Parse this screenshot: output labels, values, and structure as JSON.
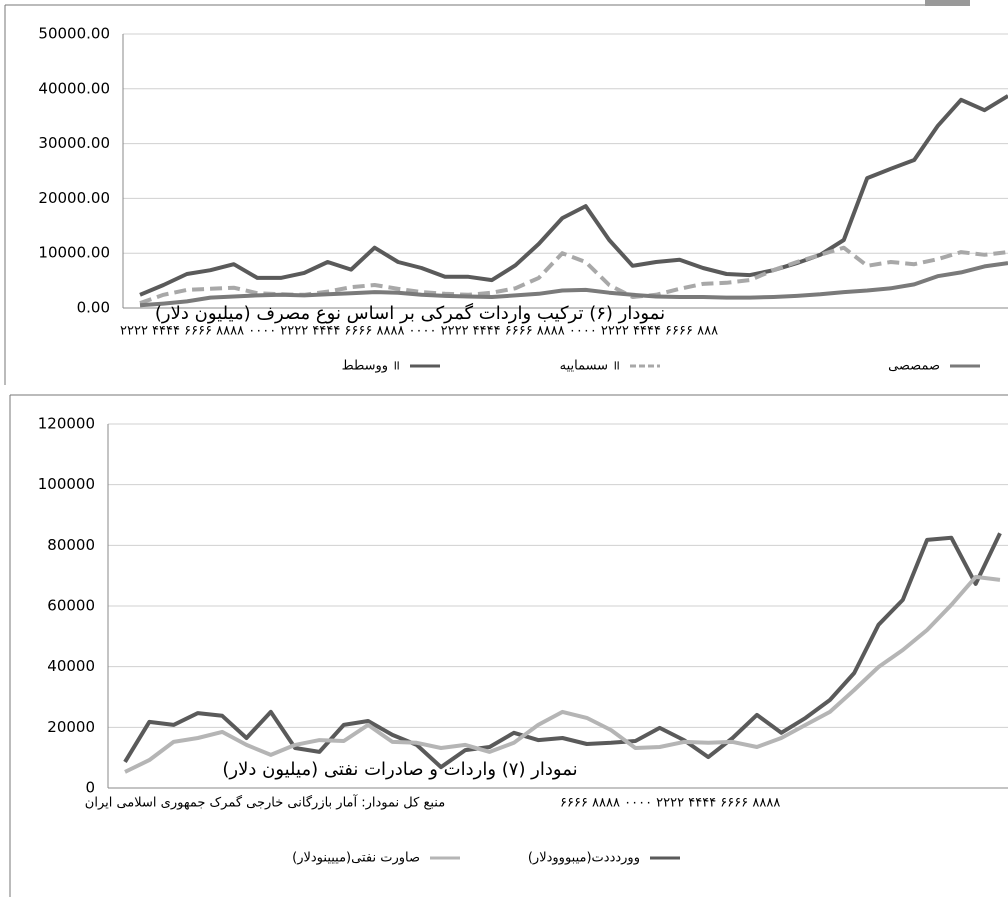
{
  "chart_data": [
    {
      "type": "line",
      "title": "نمودار (۶) ترکیب واردات گمرکی بر اساس نوع مصرف (میلیون دلار)",
      "x_axis_text": "۲۲۲۲ ۴۴۴۴ ۶۶۶۶ ۸۸۸۸ ۰۰۰۰ ۲۲۲۲ ۴۴۴۴ ۶۶۶۶ ۸۸۸۸ ۰۰۰۰ ۲۲۲۲ ۴۴۴۴ ۶۶۶۶ ۸۸۸۸ ۰۰۰۰ ۲۲۲۲ ۴۴۴۴ ۶۶۶۶ ۸۸۸",
      "categories": [
        null,
        null,
        null,
        null,
        null,
        null,
        null,
        null,
        null,
        null,
        null,
        null,
        null,
        null,
        null,
        null,
        null,
        null,
        null,
        null,
        null,
        null,
        null,
        null,
        null,
        null,
        null,
        null,
        null,
        null,
        null,
        null,
        null,
        null,
        null,
        null,
        null,
        null
      ],
      "ylim": [
        0,
        50000
      ],
      "yticks": [
        {
          "value": 0,
          "label": "0.00"
        },
        {
          "value": 10000,
          "label": "10000.00"
        },
        {
          "value": 20000,
          "label": "20000.00"
        },
        {
          "value": 30000,
          "label": "30000.00"
        },
        {
          "value": 40000,
          "label": "40000.00"
        },
        {
          "value": 50000,
          "label": "50000.00"
        }
      ],
      "grid": true,
      "series": [
        {
          "name": "ووسطط ॥",
          "color": "#5a5a5a",
          "style": "solid",
          "values": [
            2400,
            4200,
            6200,
            6900,
            8000,
            5500,
            5500,
            6400,
            8400,
            7000,
            11000,
            8400,
            7300,
            5700,
            5700,
            5100,
            7800,
            11700,
            16400,
            18600,
            12400,
            7700,
            8400,
            8800,
            7300,
            6200,
            6000,
            6900,
            8200,
            9700,
            12400,
            23700,
            25400,
            27000,
            33200,
            38000,
            36100,
            38700
          ]
        },
        {
          "name": "سسماییه ॥",
          "color": "#a8a8a8",
          "style": "dashed",
          "values": [
            900,
            2400,
            3300,
            3500,
            3700,
            2700,
            2500,
            2400,
            3000,
            3800,
            4200,
            3500,
            2900,
            2600,
            2400,
            2800,
            3600,
            5500,
            10000,
            8400,
            4200,
            2000,
            2400,
            3500,
            4400,
            4600,
            5100,
            6900,
            8400,
            9700,
            11000,
            7700,
            8400,
            8000,
            8900,
            10200,
            9700,
            10200
          ]
        },
        {
          "name": "صمصصی",
          "color": "#7a7a7a",
          "style": "solid",
          "values": [
            500,
            800,
            1200,
            1900,
            2100,
            2300,
            2400,
            2300,
            2500,
            2700,
            2900,
            2800,
            2400,
            2200,
            2100,
            2000,
            2300,
            2600,
            3200,
            3300,
            2800,
            2400,
            2100,
            2000,
            2000,
            1900,
            1900,
            2000,
            2200,
            2500,
            2900,
            3200,
            3600,
            4300,
            5800,
            6500,
            7600,
            8200
          ]
        }
      ]
    },
    {
      "type": "line",
      "title": "نمودار (۷) واردات و صادرات نفتی (میلیون دلار)",
      "x_axis_text": "۶۶۶۶ ۸۸۸۸ ۰۰۰۰ ۲۲۲۲ ۴۴۴۴ ۶۶۶۶ ۸۸۸۸",
      "source": "منبع کل نمودار: آمار بازرگانی خارجی گمرک جمهوری اسلامی ایران",
      "categories": [
        null,
        null,
        null,
        null,
        null,
        null,
        null,
        null,
        null,
        null,
        null,
        null,
        null,
        null,
        null,
        null,
        null,
        null,
        null,
        null,
        null,
        null,
        null,
        null,
        null,
        null,
        null,
        null,
        null,
        null,
        null,
        null,
        null,
        null,
        null,
        null,
        null
      ],
      "ylim": [
        0,
        120000
      ],
      "yticks": [
        0,
        20000,
        40000,
        60000,
        80000,
        100000,
        120000
      ],
      "grid": true,
      "series": [
        {
          "name": "ووردددت(میبووودلار)",
          "color": "#5a5a5a",
          "style": "solid",
          "values": [
            8600,
            21800,
            20800,
            24700,
            23800,
            16500,
            25100,
            13200,
            11900,
            20800,
            22100,
            17500,
            14200,
            6900,
            12500,
            13500,
            18200,
            15800,
            16500,
            14500,
            14900,
            15500,
            19800,
            15800,
            10200,
            16500,
            24100,
            18200,
            23100,
            29000,
            37900,
            53800,
            62000,
            81800,
            82500,
            67300,
            84000
          ]
        },
        {
          "name": "صاورت نفتی(مییینودلار)",
          "color": "#b5b5b5",
          "style": "solid",
          "values": [
            5300,
            9200,
            15200,
            16500,
            18500,
            14200,
            10900,
            14200,
            15800,
            15500,
            20800,
            15200,
            14900,
            13200,
            14200,
            11900,
            14900,
            20800,
            25100,
            23100,
            19100,
            13200,
            13500,
            15200,
            14900,
            15200,
            13500,
            16500,
            20800,
            25100,
            32300,
            39900,
            45500,
            52100,
            60400,
            69600,
            68600
          ]
        }
      ]
    }
  ]
}
